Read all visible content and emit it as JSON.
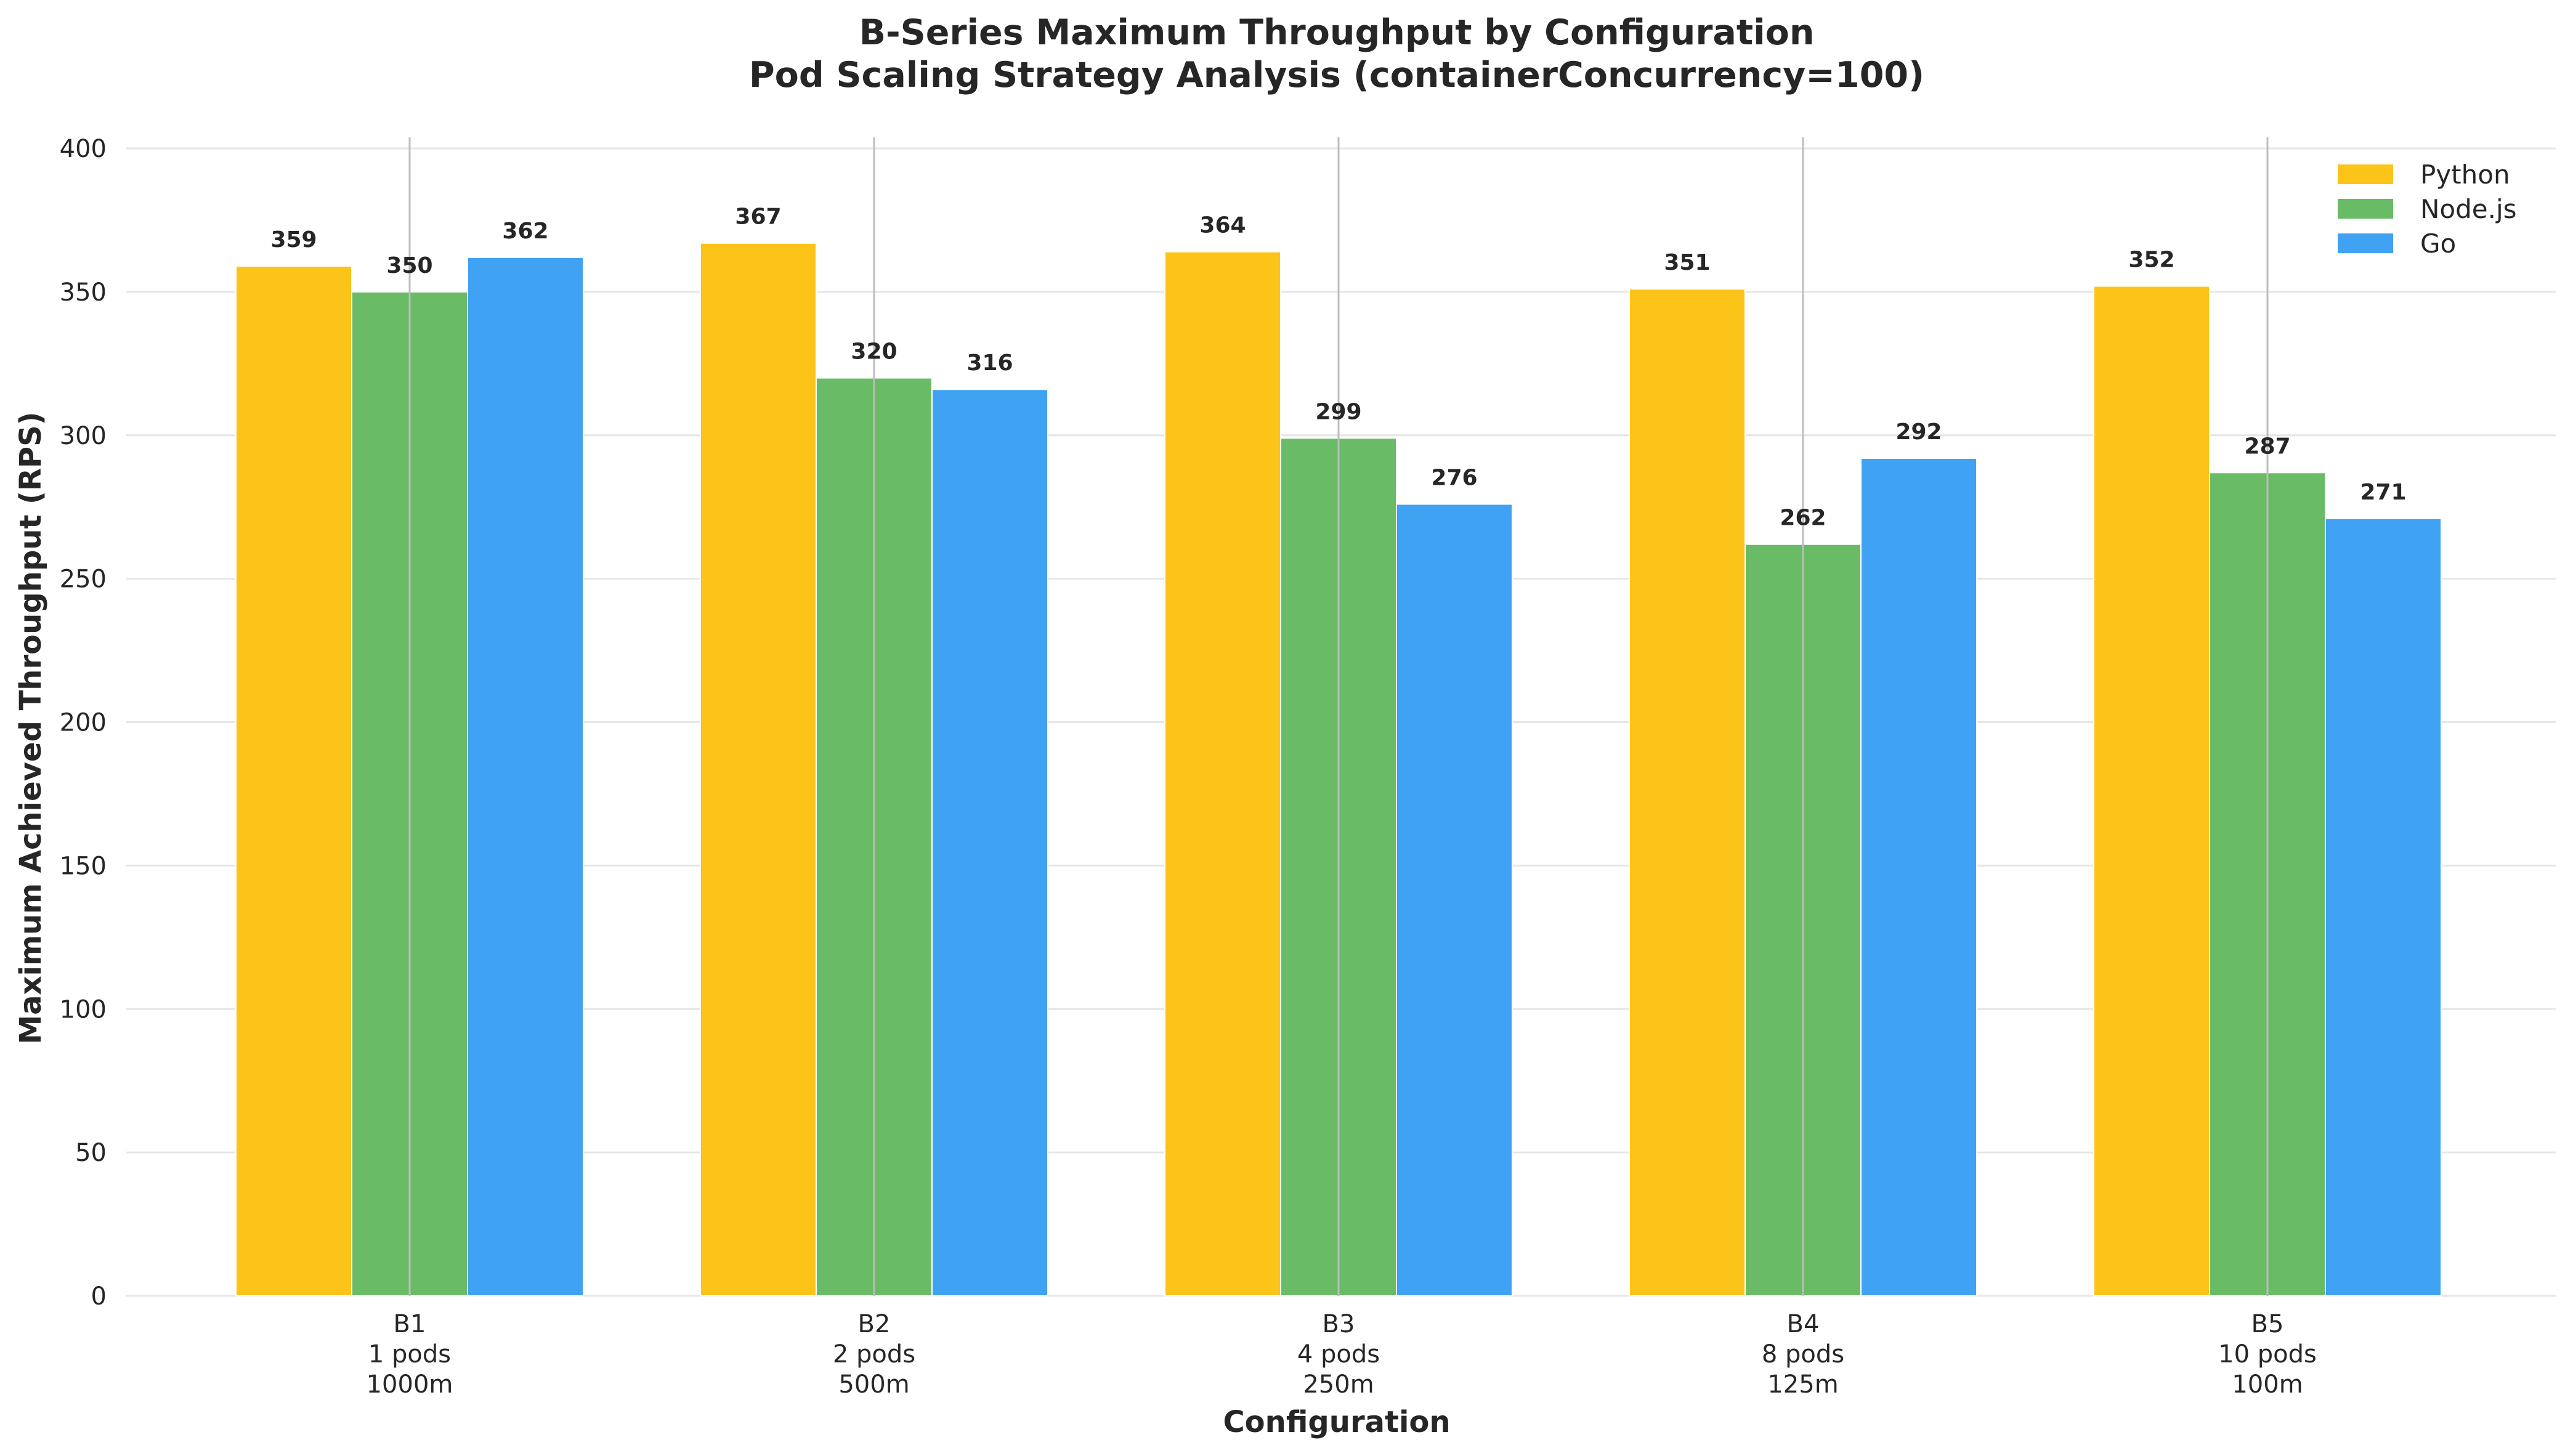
{
  "chart_data": {
    "type": "bar",
    "title": "B-Series Maximum Throughput by Configuration",
    "subtitle": "Pod Scaling Strategy Analysis (containerConcurrency=100)",
    "xlabel": "Configuration",
    "ylabel": "Maximum Achieved Throughput (RPS)",
    "ylim": [
      0,
      400
    ],
    "yticks": [
      0,
      50,
      100,
      150,
      200,
      250,
      300,
      350,
      400
    ],
    "grid": "horizontal",
    "legend_position": "top-right",
    "categories": [
      [
        "B1",
        "1 pods",
        "1000m"
      ],
      [
        "B2",
        "2 pods",
        "500m"
      ],
      [
        "B3",
        "4 pods",
        "250m"
      ],
      [
        "B4",
        "8 pods",
        "125m"
      ],
      [
        "B5",
        "10 pods",
        "100m"
      ]
    ],
    "series": [
      {
        "name": "Python",
        "color": "#fcc419",
        "values": [
          359,
          367,
          364,
          351,
          352
        ]
      },
      {
        "name": "Node.js",
        "color": "#69bb66",
        "values": [
          350,
          320,
          299,
          262,
          287
        ]
      },
      {
        "name": "Go",
        "color": "#3fa2f2",
        "values": [
          362,
          316,
          276,
          292,
          271
        ]
      }
    ]
  }
}
